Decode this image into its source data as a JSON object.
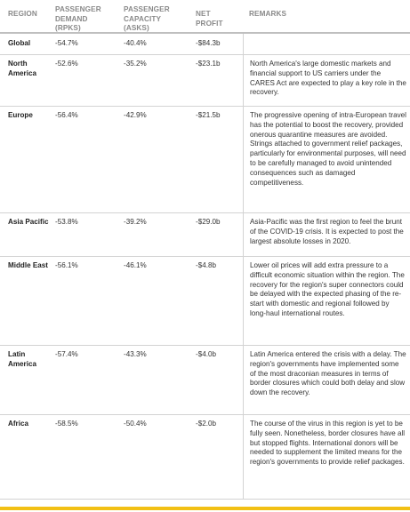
{
  "colors": {
    "header_text": "#8a8a8a",
    "accent_bar": "#f2c014",
    "rule": "#d3d3d3"
  },
  "headers": {
    "region": "REGION",
    "demand": "PASSENGER DEMAND (RPKS)",
    "capacity": "PASSENGER CAPACITY (ASKS)",
    "profit": "NET PROFIT",
    "remarks": "REMARKS"
  },
  "rows": [
    {
      "region": "Global",
      "demand": "-54.7%",
      "capacity": "-40.4%",
      "profit": "-$84.3b",
      "remarks": ""
    },
    {
      "region": "North America",
      "demand": "-52.6%",
      "capacity": "-35.2%",
      "profit": "-$23.1b",
      "remarks": "North America's large domestic markets and financial support to US carriers under the CARES Act are expected to play a key role in the recovery."
    },
    {
      "region": "Europe",
      "demand": "-56.4%",
      "capacity": "-42.9%",
      "profit": "-$21.5b",
      "remarks": "The progressive opening of intra-European travel has the potential to boost the recovery, provided onerous quarantine measures are avoided. Strings attached to government relief packages, particularly for environmental purposes, will need to be carefully managed to avoid unintended consequences such as damaged competitiveness."
    },
    {
      "region": "Asia Pacific",
      "demand": "-53.8%",
      "capacity": "-39.2%",
      "profit": "-$29.0b",
      "remarks": "Asia-Pacific was the first region to feel the brunt of the COVID-19 crisis. It is expected to post the largest absolute losses in 2020."
    },
    {
      "region": "Middle East",
      "demand": "-56.1%",
      "capacity": "-46.1%",
      "profit": "-$4.8b",
      "remarks": "Lower oil prices will add extra pressure to a difficult economic situation within the region. The recovery for the region's super connectors could be delayed with the expected phasing of the re-start with domestic and regional followed by long-haul international routes."
    },
    {
      "region": "Latin America",
      "demand": "-57.4%",
      "capacity": "-43.3%",
      "profit": "-$4.0b",
      "remarks": "Latin America entered the crisis with a delay. The region's governments have implemented some of the most draconian measures in terms of border closures which could both delay and slow down the recovery."
    },
    {
      "region": "Africa",
      "demand": "-58.5%",
      "capacity": "-50.4%",
      "profit": "-$2.0b",
      "remarks": "The course of the virus in this region is yet to be fully seen. Nonetheless, border closures have all but stopped flights. International donors will be needed to supplement the limited means for the region's governments to provide relief packages."
    }
  ]
}
